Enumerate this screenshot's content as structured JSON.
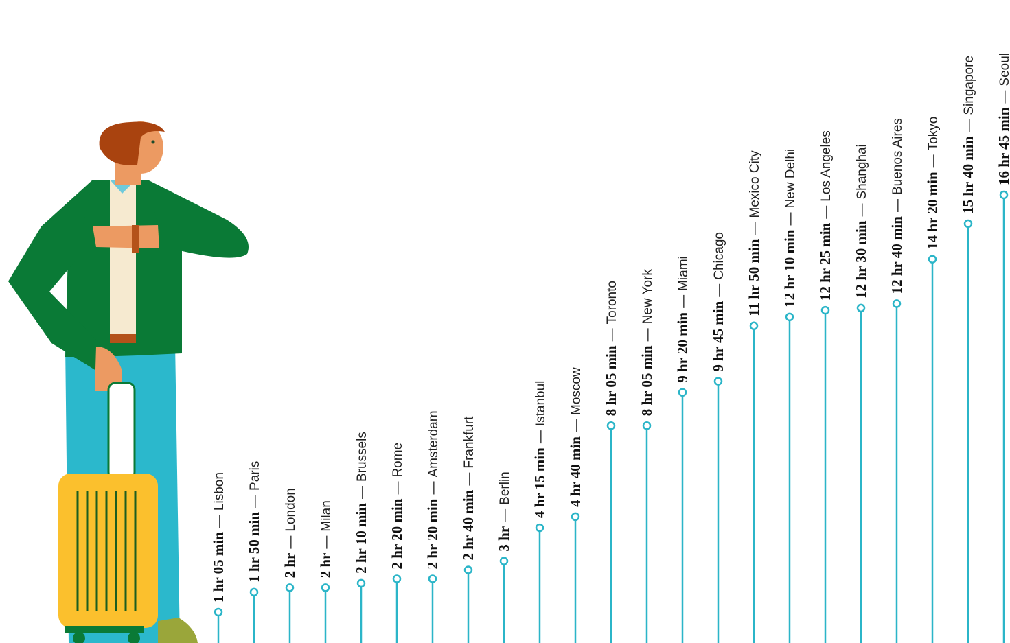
{
  "chart_data": {
    "type": "lollipop",
    "color": "#2bb5c8",
    "separator": "—",
    "categories": [
      "Lisbon",
      "Paris",
      "London",
      "Milan",
      "Brussels",
      "Rome",
      "Amsterdam",
      "Frankfurt",
      "Berlin",
      "Istanbul",
      "Moscow",
      "Toronto",
      "New York",
      "Miami",
      "Chicago",
      "Mexico City",
      "New Delhi",
      "Los Angeles",
      "Shanghai",
      "Buenos Aires",
      "Tokyo",
      "Singapore",
      "Seoul"
    ],
    "values": [
      65,
      110,
      120,
      120,
      130,
      140,
      140,
      160,
      180,
      255,
      280,
      485,
      485,
      560,
      585,
      710,
      730,
      745,
      750,
      760,
      860,
      940,
      1005
    ],
    "value_labels": [
      "1 hr 05 min",
      "1 hr 50 min",
      "2 hr",
      "2 hr",
      "2 hr 10 min",
      "2 hr 20 min",
      "2 hr 20 min",
      "2 hr 40 min",
      "3 hr",
      "4 hr 15 min",
      "4 hr 40 min",
      "8 hr 05 min",
      "8 hr 05 min",
      "9 hr 20 min",
      "9 hr 45 min",
      "11 hr 50 min",
      "12 hr 10 min",
      "12 hr 25 min",
      "12 hr 30 min",
      "12 hr 40 min",
      "14 hr 20 min",
      "15 hr 40 min",
      "16 hr 45 min"
    ]
  }
}
